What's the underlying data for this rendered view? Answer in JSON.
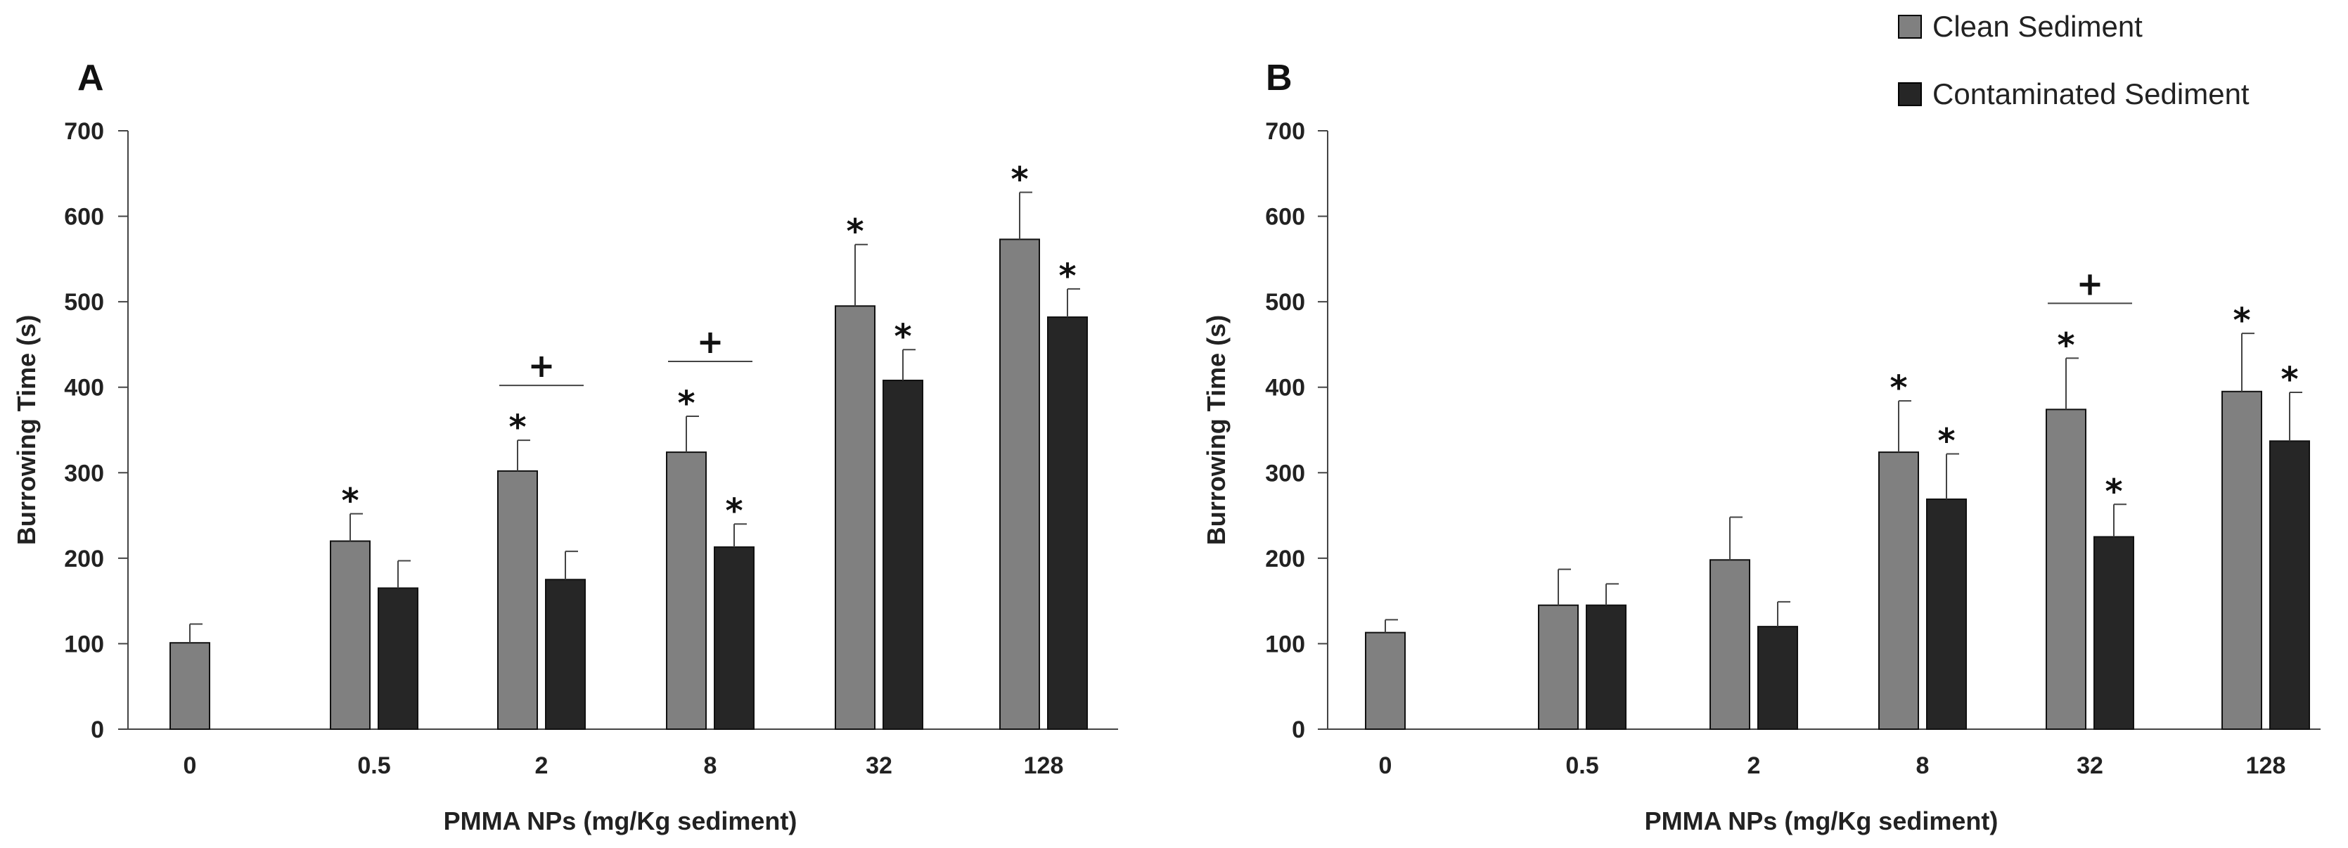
{
  "legend": {
    "entries": [
      {
        "label": "Clean Sediment",
        "color": "#808080"
      },
      {
        "label": "Contaminated Sediment",
        "color": "#262626"
      }
    ]
  },
  "chart_data": [
    {
      "type": "bar",
      "panel_label": "A",
      "title": "",
      "xlabel": "PMMA NPs (mg/Kg sediment)",
      "ylabel": "Burrowing Time (s)",
      "ylim": [
        0,
        700
      ],
      "yticks": [
        0,
        100,
        200,
        300,
        400,
        500,
        600,
        700
      ],
      "categories": [
        "0",
        "0.5",
        "2",
        "8",
        "32",
        "128"
      ],
      "series": [
        {
          "name": "Clean Sediment",
          "color": "#808080",
          "values": [
            101,
            220,
            302,
            324,
            495,
            573
          ],
          "errors": [
            22,
            32,
            36,
            42,
            72,
            55
          ],
          "stars": [
            false,
            true,
            true,
            true,
            true,
            true
          ]
        },
        {
          "name": "Contaminated Sediment",
          "color": "#262626",
          "values": [
            null,
            165,
            175,
            213,
            408,
            482
          ],
          "errors": [
            null,
            32,
            33,
            27,
            36,
            33
          ],
          "stars": [
            false,
            false,
            false,
            true,
            true,
            true
          ]
        }
      ],
      "plus_marks": [
        {
          "category": "2",
          "symbol": "+"
        },
        {
          "category": "8",
          "symbol": "+"
        }
      ]
    },
    {
      "type": "bar",
      "panel_label": "B",
      "title": "",
      "xlabel": "PMMA NPs (mg/Kg sediment)",
      "ylabel": "Burrowing Time (s)",
      "ylim": [
        0,
        700
      ],
      "yticks": [
        0,
        100,
        200,
        300,
        400,
        500,
        600,
        700
      ],
      "categories": [
        "0",
        "0.5",
        "2",
        "8",
        "32",
        "128"
      ],
      "series": [
        {
          "name": "Clean Sediment",
          "color": "#808080",
          "values": [
            113,
            145,
            198,
            324,
            374,
            395
          ],
          "errors": [
            15,
            42,
            50,
            60,
            60,
            68
          ],
          "stars": [
            false,
            false,
            false,
            true,
            true,
            true
          ]
        },
        {
          "name": "Contaminated Sediment",
          "color": "#262626",
          "values": [
            null,
            145,
            120,
            269,
            225,
            337
          ],
          "errors": [
            null,
            25,
            29,
            53,
            38,
            57
          ],
          "stars": [
            false,
            false,
            false,
            true,
            true,
            true
          ]
        }
      ],
      "plus_marks": [
        {
          "category": "32",
          "symbol": "+"
        }
      ]
    }
  ]
}
